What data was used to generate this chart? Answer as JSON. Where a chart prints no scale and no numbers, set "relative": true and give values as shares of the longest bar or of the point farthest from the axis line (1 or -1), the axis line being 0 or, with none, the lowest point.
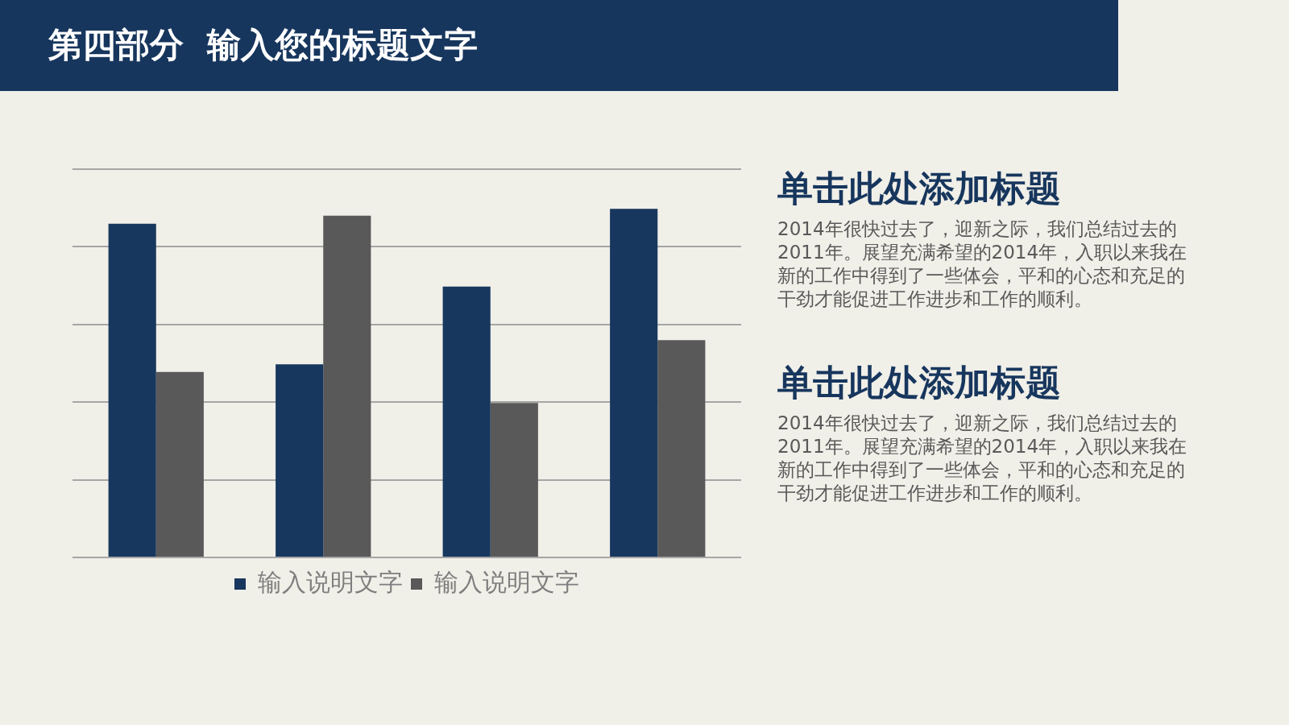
{
  "chart_data": {
    "type": "bar",
    "title": "第四部分  输入您的标题文字",
    "categories": [
      null,
      null,
      null,
      null
    ],
    "relative": true,
    "grid": "y",
    "legend": "bottom",
    "series": [
      {
        "name": "输入说明文字",
        "color": "#17375e",
        "values": [
          0.957,
          0.554,
          0.777,
          1
        ]
      },
      {
        "name": "输入说明文字",
        "color": "#595959",
        "values": [
          0.532,
          0.98,
          0.443,
          0.623
        ]
      }
    ],
    "annotations": [
      "单击此处添加标题",
      "2014年很快过去了，迎新之际，我们总结过去的2011年。展望充满希望的2014年，入职以来我在新的工作中得到了一些体会，平和的心态和充足的干劲才能促进工作进步和工作的顺利。",
      "单击此处添加标题",
      "2014年很快过去了，迎新之际，我们总结过去的2011年。展望充满希望的2014年，入职以来我在新的工作中得到了一些体会，平和的心态和充足的干劲才能促进工作进步和工作的顺利。"
    ]
  }
}
